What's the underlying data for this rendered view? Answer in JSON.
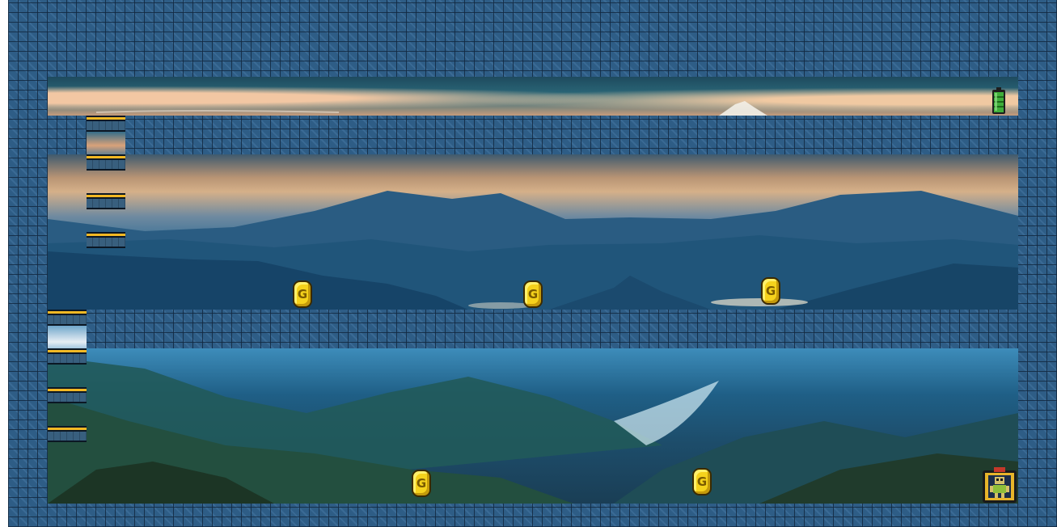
{
  "level": {
    "coins": [
      {
        "label": "G"
      },
      {
        "label": "G"
      },
      {
        "label": "G"
      },
      {
        "label": "G"
      },
      {
        "label": "G"
      }
    ]
  },
  "icons": {
    "coin": "coin-icon",
    "battery": "battery-icon",
    "player": "robot-player-icon"
  },
  "colors": {
    "wall": "#2e5d86",
    "coin": "#f5d21c",
    "ledge_trim": "#f2b824",
    "battery": "#3fae3a"
  }
}
